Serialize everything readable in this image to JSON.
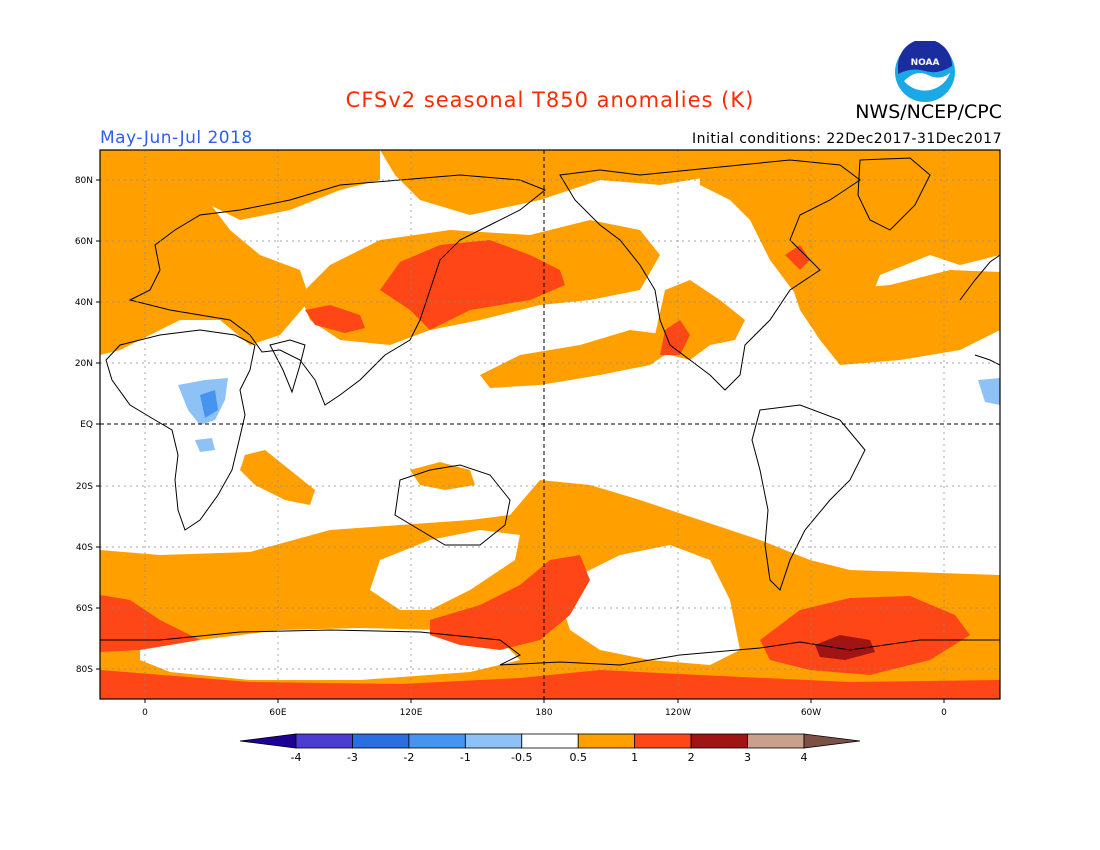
{
  "title": "CFSv2 seasonal T850 anomalies (K)",
  "period": "May-Jun-Jul 2018",
  "initial_conditions": "Initial conditions: 22Dec2017-31Dec2017",
  "agency": "NWS/NCEP/CPC",
  "logo_text": "NOAA",
  "colors": {
    "title": "#ff2a00",
    "period": "#2e5ef0",
    "land_outline": "#000000"
  },
  "lat_labels": [
    "80N",
    "60N",
    "40N",
    "20N",
    "EQ",
    "20S",
    "40S",
    "60S",
    "80S"
  ],
  "lon_labels": [
    "0",
    "60E",
    "120E",
    "180",
    "120W",
    "60W",
    "0"
  ],
  "colorbar": {
    "colors": [
      "#1e0096",
      "#4b3cd2",
      "#2a6ee0",
      "#4594f0",
      "#8ec2f7",
      "#ffffff",
      "#ffa000",
      "#ff4616",
      "#a01414",
      "#c8a08c",
      "#7d5046"
    ],
    "labels": [
      "-4",
      "-3",
      "-2",
      "-1",
      "-0.5",
      "0.5",
      "1",
      "2",
      "3",
      "4"
    ]
  }
}
